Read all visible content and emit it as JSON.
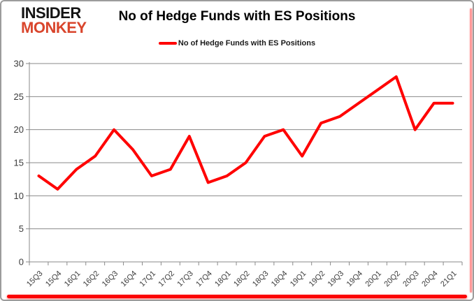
{
  "logo": {
    "line1": "INSIDER",
    "line2": "MONKEY"
  },
  "header": {
    "title": "No of Hedge Funds with ES Positions"
  },
  "legend": {
    "label": "No of Hedge Funds with ES Positions"
  },
  "colors": {
    "line": "#ff0000",
    "grid": "#8a8a8a",
    "axis": "#8a8a8a",
    "tick_text": "#3b3b3b",
    "logo_black": "#141414",
    "logo_red": "#d9452c",
    "frame_border": "#9c9c9c",
    "frame_glow": "#fb0404"
  },
  "chart_data": {
    "type": "line",
    "title": "No of Hedge Funds with ES Positions",
    "categories": [
      "15Q3",
      "15Q4",
      "16Q1",
      "16Q2",
      "16Q3",
      "16Q4",
      "17Q1",
      "17Q2",
      "17Q3",
      "17Q4",
      "18Q1",
      "18Q2",
      "18Q3",
      "18Q4",
      "19Q1",
      "19Q2",
      "19Q3",
      "19Q4",
      "20Q1",
      "20Q2",
      "20Q3",
      "20Q4",
      "21Q1"
    ],
    "series": [
      {
        "name": "No of Hedge Funds with ES Positions",
        "color": "#ff0000",
        "values": [
          13,
          11,
          14,
          16,
          20,
          17,
          13,
          14,
          19,
          12,
          13,
          15,
          19,
          20,
          16,
          21,
          22,
          24,
          26,
          28,
          20,
          24,
          24
        ]
      }
    ],
    "xlabel": "",
    "ylabel": "",
    "ylim": [
      0,
      30
    ],
    "yticks": [
      0,
      5,
      10,
      15,
      20,
      25,
      30
    ],
    "grid": true,
    "legend_position": "top-center"
  }
}
